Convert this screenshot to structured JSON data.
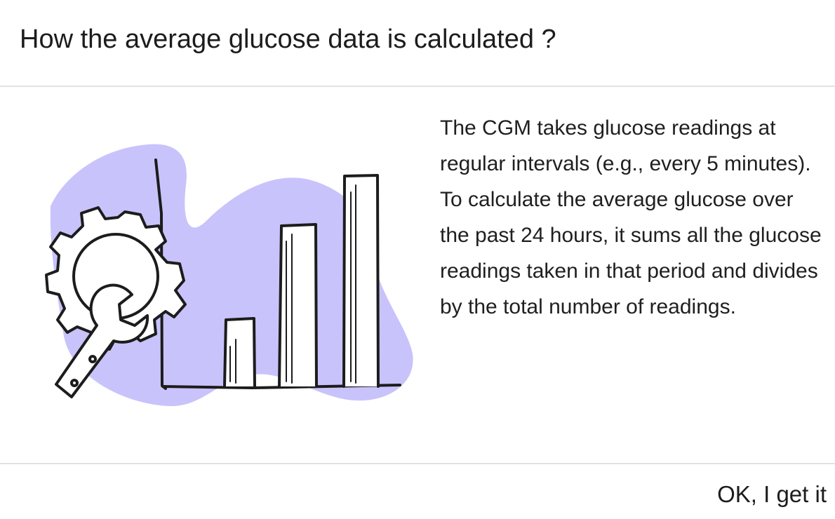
{
  "dialog": {
    "title": "How the average glucose data is calculated ?",
    "description": "The CGM takes glucose readings at regular intervals (e.g., every 5 minutes). To calculate the average glucose over the past 24 hours, it sums all the glucose readings taken in that period and divides by the total number of readings.",
    "ok_label": "OK, I get it"
  },
  "illustration": {
    "icon": "gear-wrench-bar-chart-illustration",
    "accent_color": "#c9c3fb",
    "stroke_color": "#1c1c1c"
  }
}
